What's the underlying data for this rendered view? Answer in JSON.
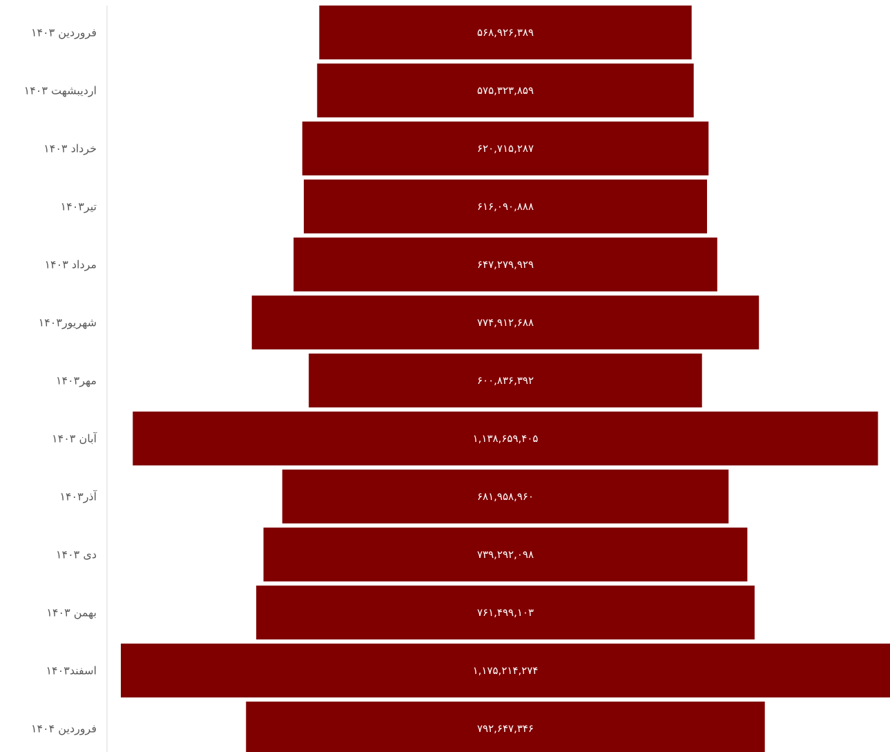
{
  "chart_data": {
    "type": "bar",
    "orientation": "horizontal",
    "layout": "funnel-centered",
    "bar_color": "#800000",
    "label_color": "#ffffff",
    "category_label_color": "#595959",
    "grid": false,
    "legend": "none",
    "categories": [
      "فروردین ۱۴۰۳",
      "اردیبشهت ۱۴۰۳",
      "خرداد ۱۴۰۳",
      "تیر۱۴۰۳",
      "مرداد ۱۴۰۳",
      "شهریور۱۴۰۳",
      "مهر۱۴۰۳",
      "آبان ۱۴۰۳",
      "آذر۱۴۰۳",
      "دی ۱۴۰۳",
      "بهمن ۱۴۰۳",
      "اسفند۱۴۰۳",
      "فروردین ۱۴۰۴"
    ],
    "values": [
      568926389,
      575323859,
      620715287,
      616090888,
      647279929,
      774912688,
      600836392,
      1138659405,
      681958960,
      739292098,
      761499103,
      1175214274,
      792647346
    ],
    "value_labels": [
      "۵۶۸,۹۲۶,۳۸۹",
      "۵۷۵,۳۲۳,۸۵۹",
      "۶۲۰,۷۱۵,۲۸۷",
      "۶۱۶,۰۹۰,۸۸۸",
      "۶۴۷,۲۷۹,۹۲۹",
      "۷۷۴,۹۱۲,۶۸۸",
      "۶۰۰,۸۳۶,۳۹۲",
      "۱,۱۳۸,۶۵۹,۴۰۵",
      "۶۸۱,۹۵۸,۹۶۰",
      "۷۳۹,۲۹۲,۰۹۸",
      "۷۶۱,۴۹۹,۱۰۳",
      "۱,۱۷۵,۲۱۴,۲۷۴",
      "۷۹۲,۶۴۷,۳۴۶"
    ]
  }
}
